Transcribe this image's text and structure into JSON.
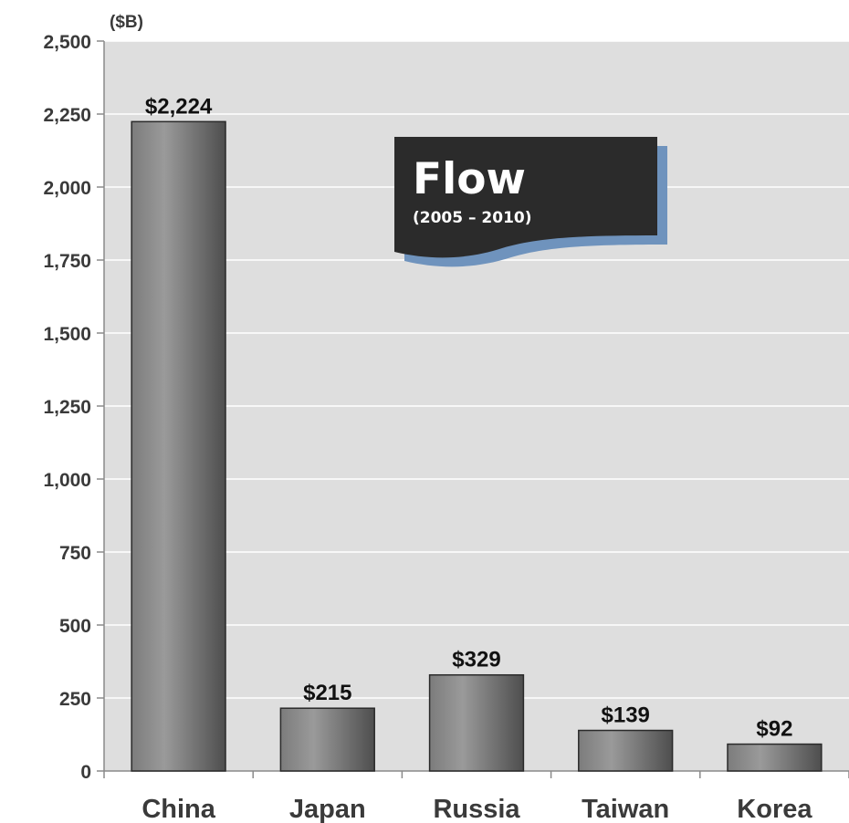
{
  "chart_data": {
    "type": "bar",
    "unit_label": "($B)",
    "categories": [
      "China",
      "Japan",
      "Russia",
      "Taiwan",
      "Korea"
    ],
    "values": [
      2224,
      215,
      329,
      139,
      92
    ],
    "data_labels": [
      "$2,224",
      "$215",
      "$329",
      "$139",
      "$92"
    ],
    "ylim": [
      0,
      2500
    ],
    "yticks": [
      0,
      250,
      500,
      750,
      1000,
      1250,
      1500,
      1750,
      2000,
      2250,
      2500
    ],
    "ytick_labels": [
      "0",
      "250",
      "500",
      "750",
      "1,000",
      "1,250",
      "1,500",
      "1,750",
      "2,000",
      "2,250",
      "2,500"
    ],
    "grid": true,
    "annotation": {
      "title": "Flow",
      "subtitle": "(2005 – 2010)"
    },
    "colors": {
      "plot_bg": "#dedede",
      "bar_light": "#9a9a9a",
      "bar_dark": "#4e4e4e",
      "banner": "#2b2b2b",
      "banner_shadow": "#6f93bd"
    }
  }
}
